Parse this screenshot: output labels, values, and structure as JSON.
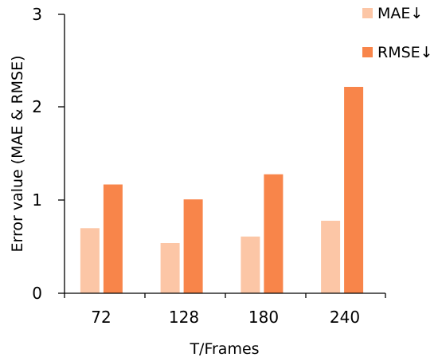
{
  "chart_data": {
    "type": "bar",
    "xlabel": "T/Frames",
    "ylabel": "Error value (MAE & RMSE)",
    "categories": [
      "72",
      "128",
      "180",
      "240"
    ],
    "ylim": [
      0,
      3
    ],
    "yticks": [
      "0",
      "1",
      "2",
      "3"
    ],
    "grid": false,
    "legend_position": "top-right",
    "series": [
      {
        "name": "MAE↓",
        "color": "#FCC6A6",
        "values": [
          0.7,
          0.54,
          0.61,
          0.78
        ]
      },
      {
        "name": "RMSE↓",
        "color": "#F8854A",
        "values": [
          1.17,
          1.01,
          1.28,
          2.22
        ]
      }
    ]
  }
}
